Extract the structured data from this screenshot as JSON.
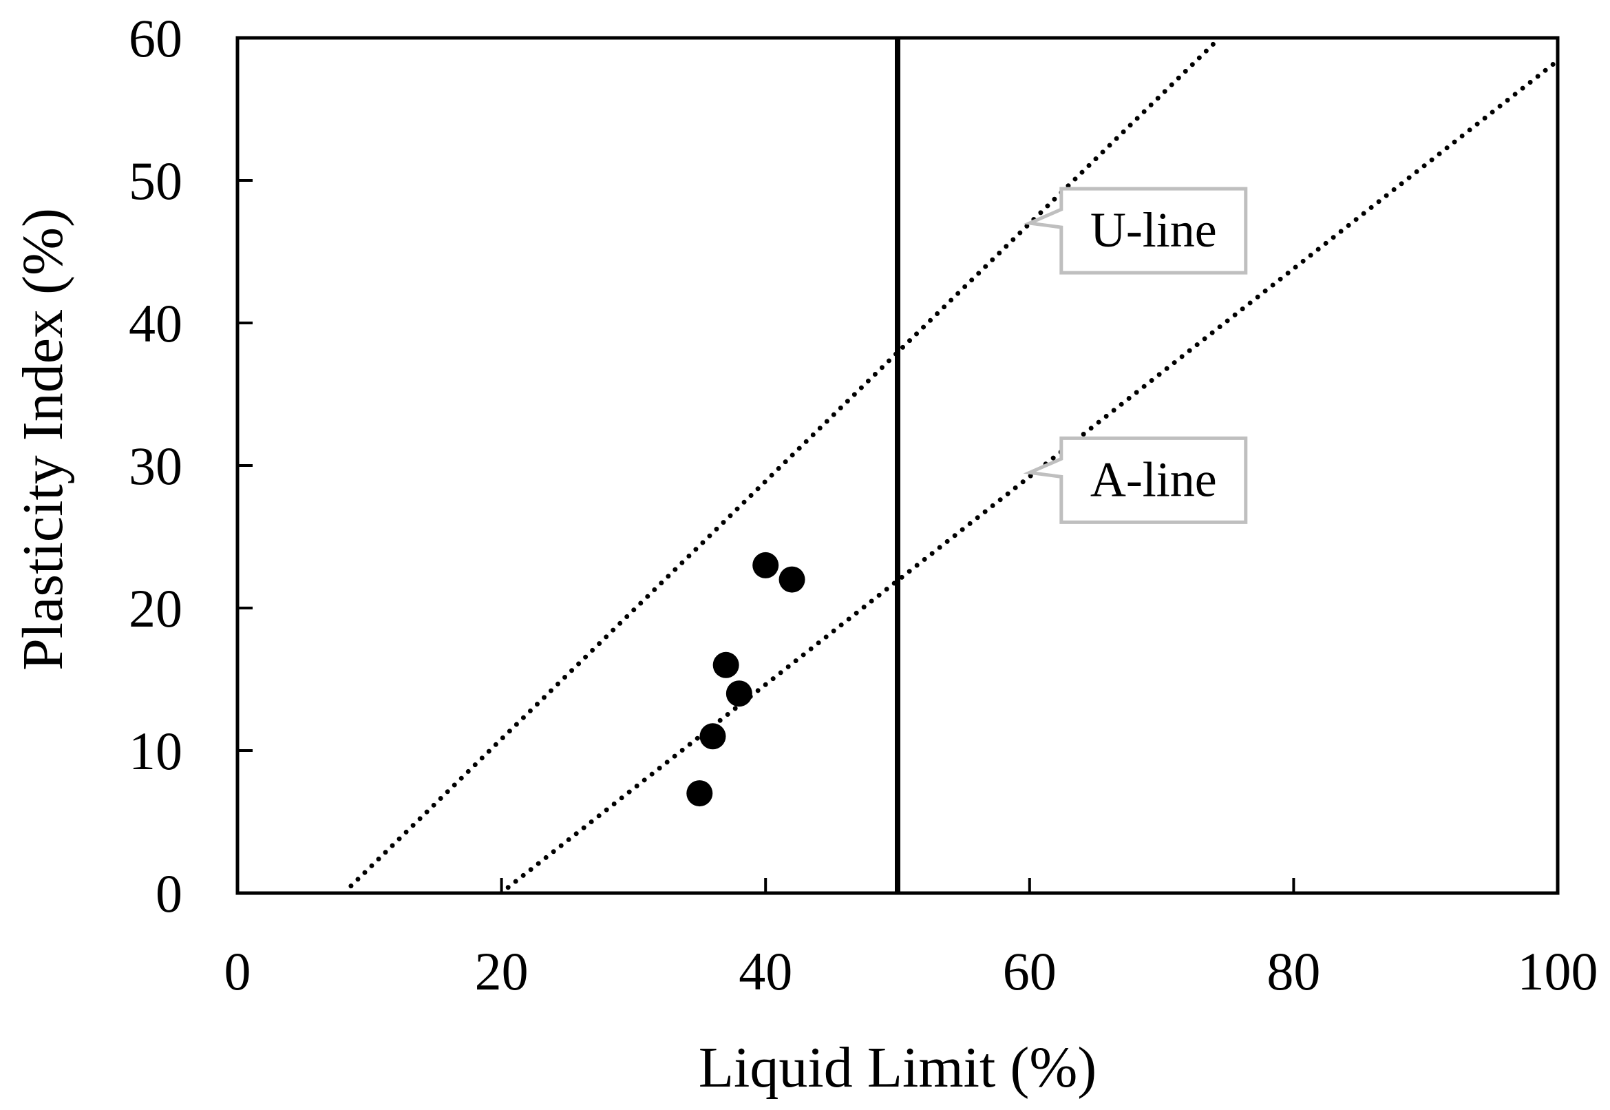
{
  "chart_data": {
    "type": "scatter",
    "title": "",
    "xlabel": "Liquid Limit (%)",
    "ylabel": "Plasticity Index (%)",
    "xlim": [
      0,
      100
    ],
    "ylim": [
      0,
      60
    ],
    "x_ticks": [
      0,
      20,
      40,
      60,
      80,
      100
    ],
    "y_ticks": [
      0,
      10,
      20,
      30,
      40,
      50,
      60
    ],
    "x_tick_labels": [
      "0",
      "20",
      "40",
      "60",
      "80",
      "100"
    ],
    "y_tick_labels": [
      "0",
      "10",
      "20",
      "30",
      "40",
      "50",
      "60"
    ],
    "grid": false,
    "series": [
      {
        "marker": "circle",
        "x": [
          35,
          36,
          37,
          38,
          40,
          42
        ],
        "y": [
          7,
          11,
          16,
          14,
          23,
          22
        ]
      }
    ],
    "lines": [
      {
        "name": "U-line",
        "style": "dotted",
        "x": [
          8.6,
          74.4
        ],
        "y": [
          0.5,
          60
        ]
      },
      {
        "name": "A-line",
        "style": "dotted",
        "x": [
          20.5,
          100
        ],
        "y": [
          0.4,
          58.4
        ]
      },
      {
        "name": "",
        "style": "solid",
        "x": [
          50,
          50
        ],
        "y": [
          0,
          60
        ]
      }
    ],
    "annotations": [
      {
        "text": "U-line",
        "points_to": [
          60,
          47
        ]
      },
      {
        "text": "A-line",
        "points_to": [
          60,
          29.5
        ]
      }
    ]
  }
}
